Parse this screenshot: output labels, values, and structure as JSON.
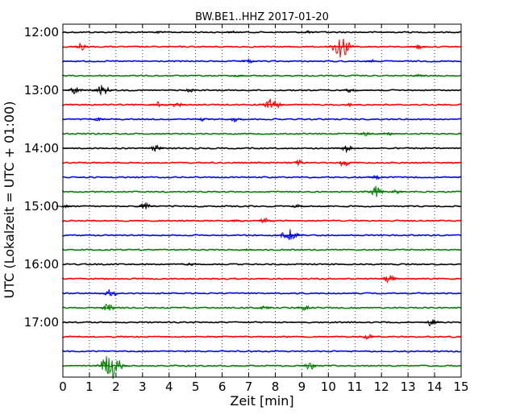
{
  "chart_data": {
    "type": "line",
    "title": "BW.BE1..HHZ 2017-01-20",
    "xlabel": "Zeit  [min]",
    "ylabel": "UTC (Lokalzeit = UTC + 01:00)",
    "xlim": [
      0,
      15
    ],
    "x_ticks": [
      "0",
      "1",
      "2",
      "3",
      "4",
      "5",
      "6",
      "7",
      "8",
      "9",
      "10",
      "11",
      "12",
      "13",
      "14",
      "15"
    ],
    "y_ticks": [
      "12:00",
      "13:00",
      "14:00",
      "15:00",
      "16:00",
      "17:00"
    ],
    "grid": "vertical dotted",
    "trace_colors": [
      "#000000",
      "#ff0000",
      "#0000ff",
      "#008000"
    ],
    "traces": [
      {
        "time": "12:00",
        "events": [
          [
            3.6,
            0.2
          ],
          [
            6.4,
            0.25
          ],
          [
            9.2,
            0.25
          ]
        ]
      },
      {
        "time": "12:15",
        "events": [
          [
            0.7,
            0.5
          ],
          [
            10.5,
            1.6
          ],
          [
            13.4,
            0.4
          ]
        ]
      },
      {
        "time": "12:30",
        "events": [
          [
            7.0,
            0.3
          ],
          [
            11.6,
            0.3
          ]
        ]
      },
      {
        "time": "12:45",
        "events": [
          [
            6.6,
            0.2
          ],
          [
            13.4,
            0.2
          ]
        ]
      },
      {
        "time": "13:00",
        "events": [
          [
            0.5,
            0.6
          ],
          [
            1.5,
            0.8
          ],
          [
            4.8,
            0.3
          ],
          [
            10.8,
            0.3
          ]
        ]
      },
      {
        "time": "13:15",
        "events": [
          [
            3.6,
            0.5
          ],
          [
            4.3,
            0.4
          ],
          [
            7.9,
            1.0
          ],
          [
            10.8,
            0.3
          ]
        ]
      },
      {
        "time": "13:30",
        "events": [
          [
            1.3,
            0.3
          ],
          [
            5.3,
            0.3
          ],
          [
            6.5,
            0.4
          ]
        ]
      },
      {
        "time": "13:45",
        "events": [
          [
            11.4,
            0.3
          ],
          [
            12.2,
            0.4
          ]
        ]
      },
      {
        "time": "14:00",
        "events": [
          [
            3.5,
            0.5
          ],
          [
            10.7,
            0.6
          ]
        ]
      },
      {
        "time": "14:15",
        "events": [
          [
            8.9,
            0.4
          ],
          [
            10.6,
            0.6
          ]
        ]
      },
      {
        "time": "14:30",
        "events": [
          [
            11.8,
            0.3
          ]
        ]
      },
      {
        "time": "14:45",
        "events": [
          [
            11.8,
            0.8
          ],
          [
            12.6,
            0.4
          ]
        ]
      },
      {
        "time": "15:00",
        "events": [
          [
            0.1,
            0.2
          ],
          [
            3.1,
            0.5
          ],
          [
            8.8,
            0.3
          ]
        ]
      },
      {
        "time": "15:15",
        "events": [
          [
            6.5,
            0.2
          ],
          [
            7.6,
            0.4
          ]
        ]
      },
      {
        "time": "15:30",
        "events": [
          [
            8.5,
            1.0
          ],
          [
            8.8,
            0.3
          ]
        ]
      },
      {
        "time": "15:45",
        "events": [
          [
            7.0,
            0.2
          ]
        ]
      },
      {
        "time": "16:00",
        "events": [
          [
            4.8,
            0.2
          ]
        ]
      },
      {
        "time": "16:15",
        "events": [
          [
            12.3,
            0.6
          ]
        ]
      },
      {
        "time": "16:30",
        "events": [
          [
            1.8,
            0.6
          ]
        ]
      },
      {
        "time": "16:45",
        "events": [
          [
            1.7,
            0.6
          ],
          [
            7.6,
            0.3
          ],
          [
            9.1,
            0.4
          ]
        ]
      },
      {
        "time": "17:00",
        "events": [
          [
            13.9,
            0.6
          ]
        ]
      },
      {
        "time": "17:15",
        "events": [
          [
            11.5,
            0.4
          ]
        ]
      },
      {
        "time": "17:30",
        "events": []
      },
      {
        "time": "17:45",
        "events": [
          [
            1.8,
            1.9
          ],
          [
            9.3,
            0.6
          ]
        ]
      }
    ]
  }
}
